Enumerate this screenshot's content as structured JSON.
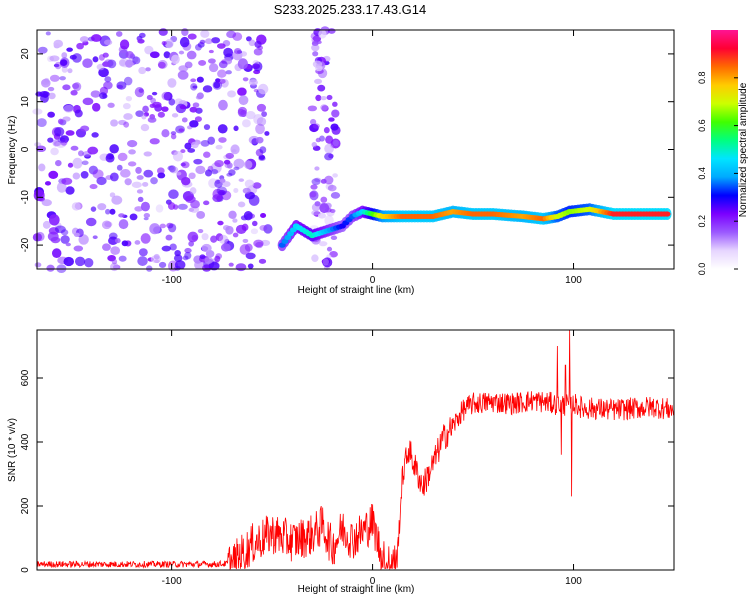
{
  "figure": {
    "title": "S233.2025.233.17.43.G14"
  },
  "chart_data": [
    {
      "type": "heatmap",
      "xlabel": "Height of straight line (km)",
      "ylabel": "Frequency (Hz)",
      "xlim": [
        -167,
        150
      ],
      "ylim": [
        -25,
        25
      ],
      "xticks": [
        -100,
        0,
        100
      ],
      "yticks": [
        -20,
        -10,
        0,
        10,
        20
      ],
      "colorbar": {
        "label": "Normalized spectral amplitude",
        "range": [
          0,
          1
        ],
        "ticks": [
          "0.0",
          "0.2",
          "0.4",
          "0.6",
          "0.8"
        ],
        "colormap": [
          "#ffffff",
          "#e6d5ff",
          "#9b59ff",
          "#7b00ff",
          "#0000ff",
          "#00aaff",
          "#00e5ff",
          "#00ff80",
          "#40ff00",
          "#ccff00",
          "#ffcc00",
          "#ff6a00",
          "#ff0033",
          "#ff1493"
        ]
      },
      "regions": {
        "noise_band": {
          "x_range": [
            -167,
            -52
          ],
          "y_range": [
            -25,
            25
          ],
          "amplitude": 0.1
        },
        "noise_strip": {
          "x_range": [
            -30,
            -18
          ],
          "y_range": [
            -25,
            25
          ],
          "amplitude": 0.08
        },
        "signal_track": [
          {
            "x": -45,
            "y": -20,
            "amplitude": 0.35
          },
          {
            "x": -38,
            "y": -16,
            "amplitude": 0.45
          },
          {
            "x": -30,
            "y": -18,
            "amplitude": 0.5
          },
          {
            "x": -15,
            "y": -16,
            "amplitude": 0.3
          },
          {
            "x": -10,
            "y": -14,
            "amplitude": 0.35
          },
          {
            "x": -5,
            "y": -13,
            "amplitude": 0.45
          },
          {
            "x": 5,
            "y": -14,
            "amplitude": 0.75
          },
          {
            "x": 15,
            "y": -14,
            "amplitude": 0.85
          },
          {
            "x": 30,
            "y": -14,
            "amplitude": 0.85
          },
          {
            "x": 40,
            "y": -13,
            "amplitude": 0.8
          },
          {
            "x": 50,
            "y": -13.5,
            "amplitude": 0.85
          },
          {
            "x": 60,
            "y": -13.5,
            "amplitude": 0.85
          },
          {
            "x": 75,
            "y": -14,
            "amplitude": 0.8
          },
          {
            "x": 85,
            "y": -14.5,
            "amplitude": 0.85
          },
          {
            "x": 92,
            "y": -14,
            "amplitude": 0.7
          },
          {
            "x": 98,
            "y": -13,
            "amplitude": 0.65
          },
          {
            "x": 108,
            "y": -12.5,
            "amplitude": 0.7
          },
          {
            "x": 120,
            "y": -13.5,
            "amplitude": 0.9
          },
          {
            "x": 135,
            "y": -13.5,
            "amplitude": 0.9
          },
          {
            "x": 148,
            "y": -13.5,
            "amplitude": 0.9
          }
        ]
      }
    },
    {
      "type": "line",
      "xlabel": "Height of straight line (km)",
      "ylabel": "SNR (10 * v/v)",
      "xlim": [
        -167,
        150
      ],
      "ylim": [
        0,
        750
      ],
      "xticks": [
        -100,
        0,
        100
      ],
      "yticks": [
        0,
        200,
        400,
        600
      ],
      "color": "#ff0000",
      "envelope": {
        "x": [
          -167,
          -80,
          -70,
          -60,
          -50,
          -40,
          -30,
          -25,
          -20,
          -15,
          -10,
          -5,
          0,
          5,
          12,
          15,
          18,
          20,
          25,
          30,
          35,
          40,
          45,
          50,
          60,
          70,
          80,
          90,
          95,
          100,
          105,
          110,
          120,
          130,
          140,
          150
        ],
        "y": [
          18,
          18,
          20,
          80,
          115,
          90,
          110,
          140,
          70,
          130,
          95,
          120,
          150,
          30,
          20,
          300,
          380,
          340,
          260,
          330,
          410,
          450,
          500,
          520,
          525,
          520,
          530,
          520,
          515,
          520,
          505,
          505,
          500,
          505,
          510,
          500
        ]
      },
      "noise": [
        {
          "x_range": [
            -167,
            -72
          ],
          "amplitude": 10
        },
        {
          "x_range": [
            -72,
            12
          ],
          "amplitude": 65
        },
        {
          "x_range": [
            12,
            40
          ],
          "amplitude": 45
        },
        {
          "x_range": [
            40,
            150
          ],
          "amplitude": 35
        }
      ],
      "spikes": [
        {
          "x": 92,
          "y": 700
        },
        {
          "x": 96,
          "y": 640
        },
        {
          "x": 98,
          "y": 750
        },
        {
          "x": 99,
          "y": 230
        },
        {
          "x": 94,
          "y": 360
        }
      ]
    }
  ]
}
